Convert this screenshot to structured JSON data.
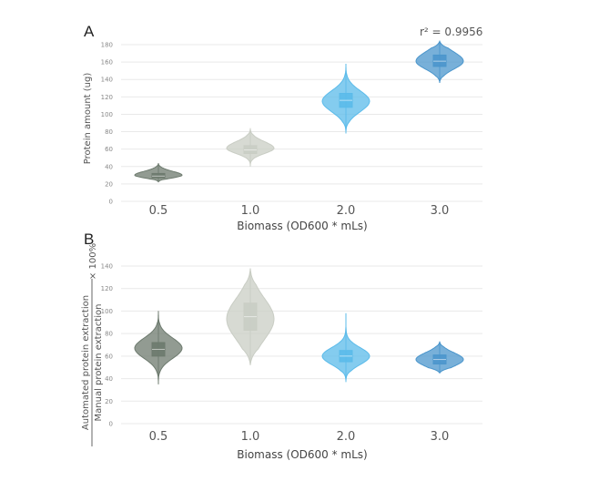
{
  "chart_data": [
    {
      "type": "violin",
      "panel_label": "A",
      "annotation": "r² = 0.9956",
      "xlabel": "Biomass (OD600 * mLs)",
      "ylabel": "Protein amount (ug)",
      "ylim": [
        0,
        180
      ],
      "yticks": [
        "0",
        "20",
        "40",
        "60",
        "80",
        "100",
        "120",
        "140",
        "160",
        "180"
      ],
      "categories": [
        "0.5",
        "1.0",
        "2.0",
        "3.0"
      ],
      "colors": [
        "#6d7a6e",
        "#c9cdc4",
        "#5bbbea",
        "#4b96cc"
      ],
      "grid": true,
      "series": [
        {
          "min": 22,
          "q1": 27,
          "median": 29,
          "q3": 32,
          "max": 44,
          "mode": 30
        },
        {
          "min": 40,
          "q1": 55,
          "median": 59,
          "q3": 64,
          "max": 84,
          "mode": 61
        },
        {
          "min": 78,
          "q1": 108,
          "median": 116,
          "q3": 124,
          "max": 158,
          "mode": 115
        },
        {
          "min": 136,
          "q1": 155,
          "median": 161,
          "q3": 168,
          "max": 184,
          "mode": 161
        }
      ]
    },
    {
      "type": "violin",
      "panel_label": "B",
      "xlabel": "Biomass (OD600 * mLs)",
      "ylabel_numerator": "Automated protein extraction",
      "ylabel_denominator": "Manual protein extraction",
      "ylabel_suffix": "× 100%",
      "ylim": [
        0,
        140
      ],
      "yticks": [
        "0",
        "20",
        "40",
        "60",
        "80",
        "100",
        "120",
        "140"
      ],
      "categories": [
        "0.5",
        "1.0",
        "2.0",
        "3.0"
      ],
      "colors": [
        "#6d7a6e",
        "#c9cdc4",
        "#5bbbea",
        "#4b96cc"
      ],
      "grid": true,
      "series": [
        {
          "min": 35,
          "q1": 60,
          "median": 66,
          "q3": 72,
          "max": 100,
          "mode": 67
        },
        {
          "min": 52,
          "q1": 83,
          "median": 95,
          "q3": 107,
          "max": 138,
          "mode": 93
        },
        {
          "min": 37,
          "q1": 55,
          "median": 60,
          "q3": 65,
          "max": 98,
          "mode": 60
        },
        {
          "min": 45,
          "q1": 53,
          "median": 57,
          "q3": 61,
          "max": 73,
          "mode": 57
        }
      ]
    }
  ]
}
